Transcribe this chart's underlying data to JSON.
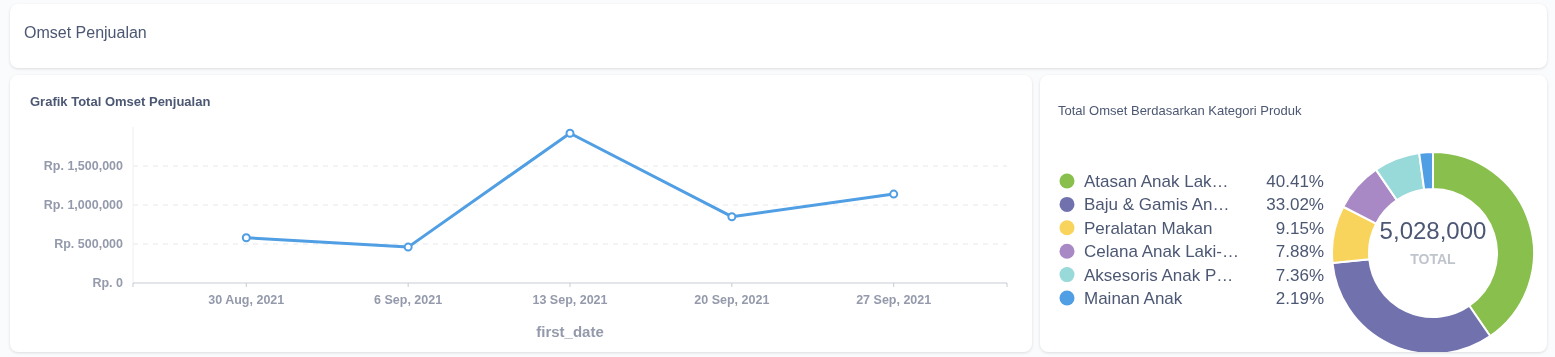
{
  "chart_data": [
    {
      "type": "other",
      "title": "Omset Penjualan"
    },
    {
      "type": "line",
      "title": "Grafik Total Omset Penjualan",
      "xlabel": "first_date",
      "categories": [
        "30 Aug, 2021",
        "6 Sep, 2021",
        "13 Sep, 2021",
        "20 Sep, 2021",
        "27 Sep, 2021"
      ],
      "series": [
        {
          "color": "#509ee3",
          "values": [
            580000,
            460000,
            1920000,
            850000,
            1140000
          ]
        }
      ],
      "ylim": [
        0,
        2000000
      ],
      "yticks": [
        {
          "value": 0,
          "label": "Rp. 0"
        },
        {
          "value": 500000,
          "label": "Rp. 500,000"
        },
        {
          "value": 1000000,
          "label": "Rp. 1,000,000"
        },
        {
          "value": 1500000,
          "label": "Rp. 1,500,000"
        }
      ],
      "grid": "y",
      "marker": "circle",
      "line_style": "solid"
    },
    {
      "type": "donut",
      "title": "Total Omset Berdasarkan Kategori Produk",
      "categories": [
        "Atasan Anak Lak…",
        "Baju & Gamis An…",
        "Peralatan Makan",
        "Celana Anak Laki-…",
        "Aksesoris Anak P…",
        "Mainan Anak"
      ],
      "values": [
        40.41,
        33.02,
        9.15,
        7.88,
        7.36,
        2.19
      ],
      "value_labels": [
        "40.41%",
        "33.02%",
        "9.15%",
        "7.88%",
        "7.36%",
        "2.19%"
      ],
      "colors": [
        "#88bf4d",
        "#7172ad",
        "#f9d45c",
        "#a989c5",
        "#98d9d9",
        "#509ee3"
      ],
      "legend": "left",
      "annotations": [
        "5,028,000",
        "TOTAL"
      ]
    }
  ]
}
